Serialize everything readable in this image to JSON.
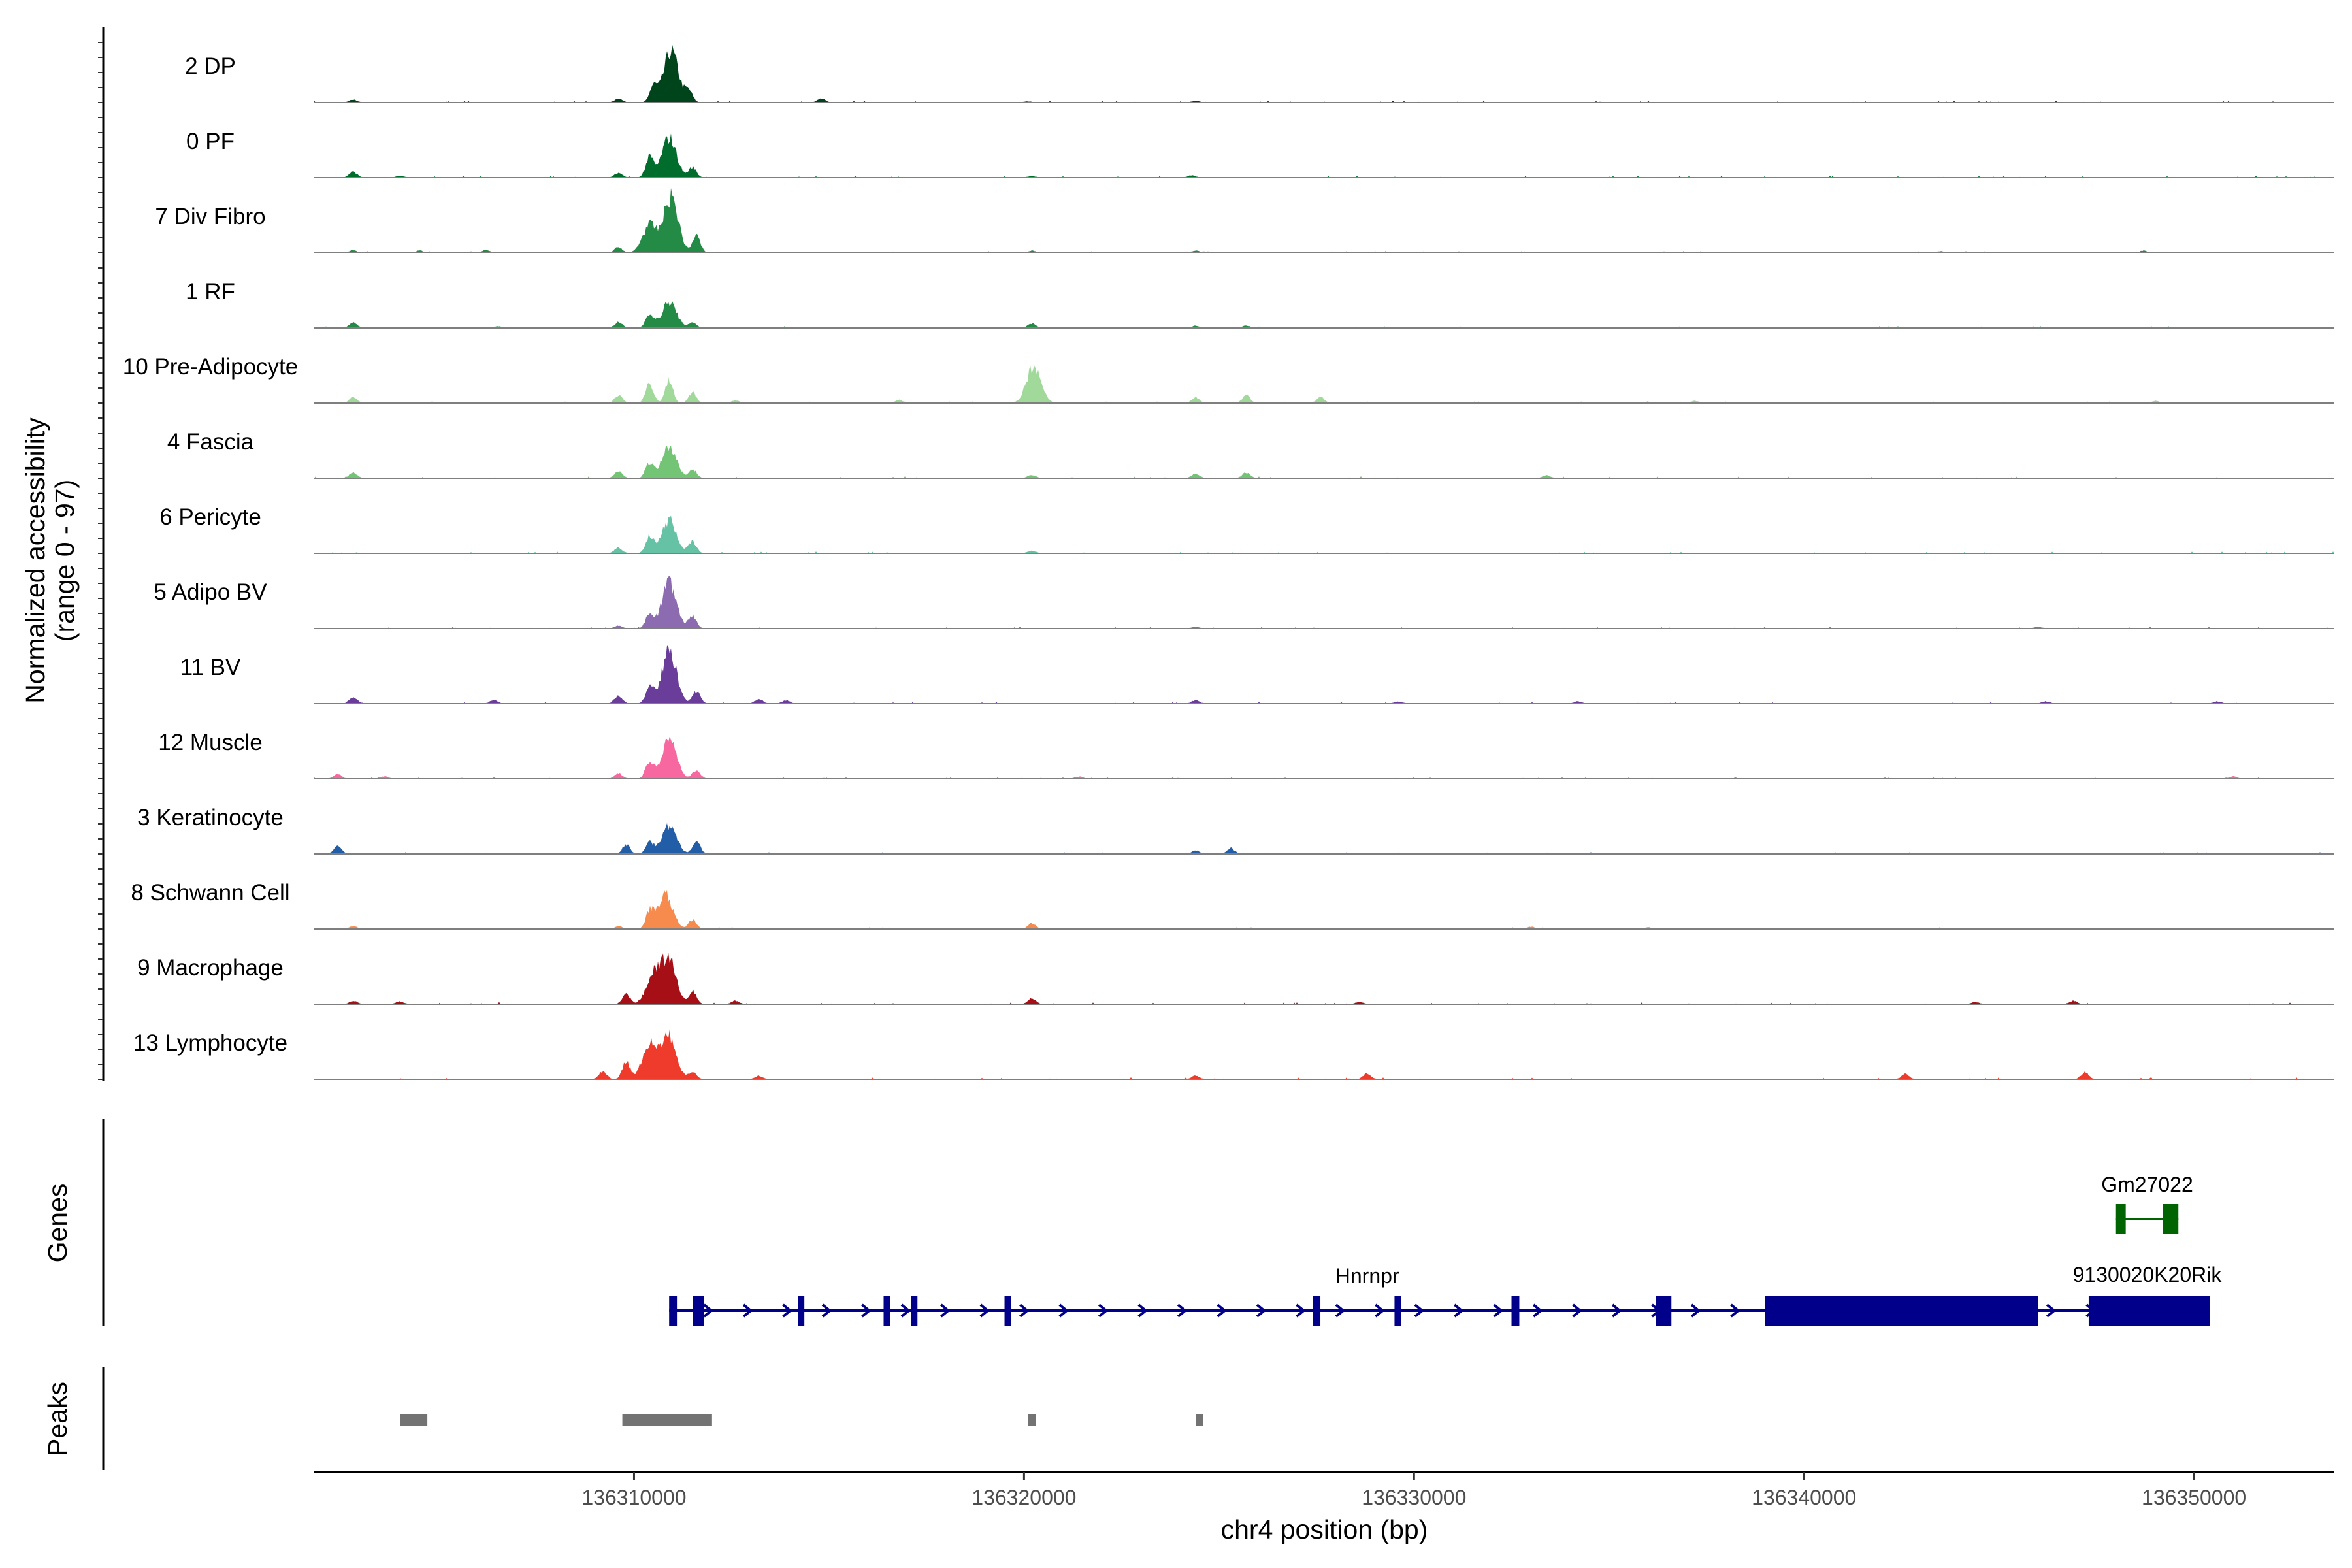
{
  "chart_data": {
    "type": "area",
    "ylabel": "Normalized accessibility",
    "ylabel_range": "(range 0 - 97)",
    "yrange": [
      0,
      97
    ],
    "xlabel": "chr4 position (bp)",
    "xlim": [
      136301800,
      136353600
    ],
    "xticks": [
      136310000,
      136320000,
      136330000,
      136340000,
      136350000
    ],
    "xtick_labels": [
      "136310000",
      "136320000",
      "136330000",
      "136340000",
      "136350000"
    ],
    "tracks": [
      {
        "name": "2 DP",
        "color": "#00441b",
        "peaks": [
          {
            "x": 136302800,
            "h": 5
          },
          {
            "x": 136309600,
            "h": 7
          },
          {
            "x": 136310500,
            "h": 28
          },
          {
            "x": 136310950,
            "h": 90
          },
          {
            "x": 136311400,
            "h": 20
          },
          {
            "x": 136314800,
            "h": 7
          },
          {
            "x": 136320100,
            "h": 2
          },
          {
            "x": 136324400,
            "h": 3
          }
        ]
      },
      {
        "name": "0 PF",
        "color": "#006d2c",
        "peaks": [
          {
            "x": 136302800,
            "h": 10
          },
          {
            "x": 136304000,
            "h": 3
          },
          {
            "x": 136309600,
            "h": 8
          },
          {
            "x": 136310400,
            "h": 35
          },
          {
            "x": 136310900,
            "h": 70
          },
          {
            "x": 136311500,
            "h": 18
          },
          {
            "x": 136320200,
            "h": 3
          },
          {
            "x": 136324300,
            "h": 4
          }
        ]
      },
      {
        "name": "7 Div Fibro",
        "color": "#238b45",
        "peaks": [
          {
            "x": 136302800,
            "h": 5
          },
          {
            "x": 136304500,
            "h": 4
          },
          {
            "x": 136306200,
            "h": 5
          },
          {
            "x": 136309600,
            "h": 10
          },
          {
            "x": 136310400,
            "h": 48
          },
          {
            "x": 136310950,
            "h": 97
          },
          {
            "x": 136311600,
            "h": 30
          },
          {
            "x": 136320200,
            "h": 4
          },
          {
            "x": 136324400,
            "h": 4
          },
          {
            "x": 136343500,
            "h": 3
          },
          {
            "x": 136348700,
            "h": 4
          }
        ]
      },
      {
        "name": "1 RF",
        "color": "#238b45",
        "peaks": [
          {
            "x": 136302800,
            "h": 10
          },
          {
            "x": 136306500,
            "h": 3
          },
          {
            "x": 136309600,
            "h": 10
          },
          {
            "x": 136310400,
            "h": 25
          },
          {
            "x": 136310900,
            "h": 45
          },
          {
            "x": 136311500,
            "h": 10
          },
          {
            "x": 136320200,
            "h": 8
          },
          {
            "x": 136324400,
            "h": 4
          },
          {
            "x": 136325700,
            "h": 4
          }
        ]
      },
      {
        "name": "10 Pre-Adipocyte",
        "color": "#a1d99b",
        "peaks": [
          {
            "x": 136302800,
            "h": 10
          },
          {
            "x": 136309600,
            "h": 14
          },
          {
            "x": 136310400,
            "h": 35
          },
          {
            "x": 136310900,
            "h": 40
          },
          {
            "x": 136311500,
            "h": 18
          },
          {
            "x": 136312600,
            "h": 5
          },
          {
            "x": 136316800,
            "h": 6
          },
          {
            "x": 136320250,
            "h": 65
          },
          {
            "x": 136324400,
            "h": 10
          },
          {
            "x": 136325700,
            "h": 14
          },
          {
            "x": 136327600,
            "h": 10
          },
          {
            "x": 136337200,
            "h": 4
          },
          {
            "x": 136349000,
            "h": 4
          }
        ]
      },
      {
        "name": "4 Fascia",
        "color": "#74c476",
        "peaks": [
          {
            "x": 136302800,
            "h": 10
          },
          {
            "x": 136309600,
            "h": 12
          },
          {
            "x": 136310400,
            "h": 28
          },
          {
            "x": 136310900,
            "h": 55
          },
          {
            "x": 136311500,
            "h": 16
          },
          {
            "x": 136320200,
            "h": 6
          },
          {
            "x": 136324400,
            "h": 8
          },
          {
            "x": 136325700,
            "h": 10
          },
          {
            "x": 136333400,
            "h": 5
          }
        ]
      },
      {
        "name": "6 Pericyte",
        "color": "#66c2a4",
        "peaks": [
          {
            "x": 136309600,
            "h": 10
          },
          {
            "x": 136310400,
            "h": 30
          },
          {
            "x": 136310900,
            "h": 58
          },
          {
            "x": 136311500,
            "h": 20
          },
          {
            "x": 136320200,
            "h": 5
          }
        ]
      },
      {
        "name": "5 Adipo BV",
        "color": "#8c6bb1",
        "peaks": [
          {
            "x": 136309600,
            "h": 5
          },
          {
            "x": 136310400,
            "h": 25
          },
          {
            "x": 136310900,
            "h": 80
          },
          {
            "x": 136311500,
            "h": 22
          },
          {
            "x": 136324400,
            "h": 3
          },
          {
            "x": 136346000,
            "h": 3
          }
        ]
      },
      {
        "name": "11 BV",
        "color": "#6a3d9a",
        "peaks": [
          {
            "x": 136302800,
            "h": 12
          },
          {
            "x": 136306400,
            "h": 6
          },
          {
            "x": 136309600,
            "h": 14
          },
          {
            "x": 136310400,
            "h": 30
          },
          {
            "x": 136310900,
            "h": 92
          },
          {
            "x": 136311600,
            "h": 22
          },
          {
            "x": 136313200,
            "h": 8
          },
          {
            "x": 136313900,
            "h": 6
          },
          {
            "x": 136324400,
            "h": 6
          },
          {
            "x": 136329600,
            "h": 4
          },
          {
            "x": 136334200,
            "h": 4
          },
          {
            "x": 136346200,
            "h": 4
          },
          {
            "x": 136350600,
            "h": 4
          }
        ]
      },
      {
        "name": "12 Muscle",
        "color": "#f768a1",
        "peaks": [
          {
            "x": 136302400,
            "h": 8
          },
          {
            "x": 136303600,
            "h": 4
          },
          {
            "x": 136309600,
            "h": 10
          },
          {
            "x": 136310400,
            "h": 30
          },
          {
            "x": 136310900,
            "h": 70
          },
          {
            "x": 136311600,
            "h": 15
          },
          {
            "x": 136321400,
            "h": 4
          },
          {
            "x": 136351000,
            "h": 4
          }
        ]
      },
      {
        "name": "3 Keratinocyte",
        "color": "#225ea8",
        "peaks": [
          {
            "x": 136302400,
            "h": 14
          },
          {
            "x": 136309800,
            "h": 16
          },
          {
            "x": 136310400,
            "h": 20
          },
          {
            "x": 136310900,
            "h": 50
          },
          {
            "x": 136311600,
            "h": 22
          },
          {
            "x": 136324400,
            "h": 6
          },
          {
            "x": 136325300,
            "h": 10
          }
        ]
      },
      {
        "name": "8 Schwann Cell",
        "color": "#f78b4d",
        "peaks": [
          {
            "x": 136302800,
            "h": 5
          },
          {
            "x": 136309600,
            "h": 5
          },
          {
            "x": 136310400,
            "h": 30
          },
          {
            "x": 136310800,
            "h": 60
          },
          {
            "x": 136311500,
            "h": 16
          },
          {
            "x": 136320200,
            "h": 10
          },
          {
            "x": 136333000,
            "h": 4
          },
          {
            "x": 136336000,
            "h": 3
          }
        ]
      },
      {
        "name": "9 Macrophage",
        "color": "#a50f15",
        "peaks": [
          {
            "x": 136302800,
            "h": 6
          },
          {
            "x": 136304000,
            "h": 5
          },
          {
            "x": 136309800,
            "h": 18
          },
          {
            "x": 136310500,
            "h": 50
          },
          {
            "x": 136310900,
            "h": 78
          },
          {
            "x": 136311500,
            "h": 22
          },
          {
            "x": 136312600,
            "h": 6
          },
          {
            "x": 136320200,
            "h": 10
          },
          {
            "x": 136328600,
            "h": 4
          },
          {
            "x": 136344400,
            "h": 4
          },
          {
            "x": 136346900,
            "h": 6
          }
        ]
      },
      {
        "name": "13 Lymphocyte",
        "color": "#ef3b2c",
        "peaks": [
          {
            "x": 136309200,
            "h": 14
          },
          {
            "x": 136309800,
            "h": 30
          },
          {
            "x": 136310400,
            "h": 62
          },
          {
            "x": 136310900,
            "h": 75
          },
          {
            "x": 136311500,
            "h": 12
          },
          {
            "x": 136313200,
            "h": 6
          },
          {
            "x": 136324400,
            "h": 6
          },
          {
            "x": 136328800,
            "h": 10
          },
          {
            "x": 136342600,
            "h": 9
          },
          {
            "x": 136347200,
            "h": 12
          }
        ]
      }
    ],
    "genes_title": "Genes",
    "genes": [
      {
        "name": "Hnrnpr",
        "strand": "+",
        "color": "#00008b",
        "start": 136310900,
        "end": 136350400,
        "label_x": 136328800,
        "row": 2,
        "exons": [
          [
            136310900,
            136311100
          ],
          [
            136311500,
            136311800
          ],
          [
            136314200,
            136314350
          ],
          [
            136316400,
            136316550
          ],
          [
            136317100,
            136317250
          ],
          [
            136319500,
            136319650
          ],
          [
            136327400,
            136327600
          ],
          [
            136329500,
            136329650
          ],
          [
            136332500,
            136332700
          ],
          [
            136336200,
            136336600
          ],
          [
            136339000,
            136346000
          ],
          [
            136347300,
            136350400
          ]
        ]
      },
      {
        "name": "Gm27022",
        "strand": "+",
        "color": "#006400",
        "start": 136348000,
        "end": 136349600,
        "label_x": 136348800,
        "row": 1,
        "exons": [
          [
            136348000,
            136348250
          ],
          [
            136349200,
            136349600
          ]
        ]
      }
    ],
    "gene_label_extra": "9130020K20Rik",
    "gene_label_extra_x": 136348800,
    "peaks_title": "Peaks",
    "peak_regions": [
      [
        136304000,
        136304700
      ],
      [
        136309700,
        136312000
      ],
      [
        136320100,
        136320300
      ],
      [
        136324400,
        136324600
      ]
    ]
  }
}
